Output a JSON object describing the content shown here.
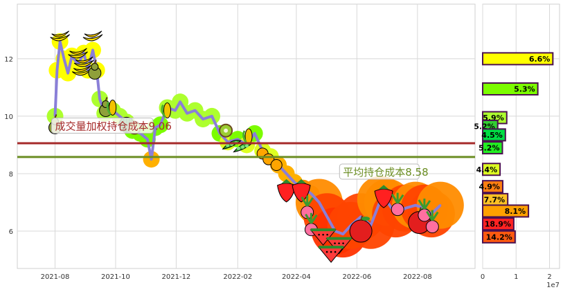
{
  "chart_data": [
    {
      "type": "line",
      "x_ticks": [
        "2021-08",
        "2021-10",
        "2021-12",
        "2022-02",
        "2022-04",
        "2022-06",
        "2022-08"
      ],
      "y_ticks": [
        "6",
        "8",
        "10",
        "12"
      ],
      "ylim": [
        4.7,
        13.9
      ],
      "grid": true,
      "series": [
        {
          "values": [
            {
              "x": "2021-08-01",
              "y": 10.0
            },
            {
              "x": "2021-08-03",
              "y": 11.6
            },
            {
              "x": "2021-08-06",
              "y": 12.6
            },
            {
              "x": "2021-08-10",
              "y": 12.0
            },
            {
              "x": "2021-08-14",
              "y": 11.5
            },
            {
              "x": "2021-08-18",
              "y": 12.1
            },
            {
              "x": "2021-08-24",
              "y": 11.8
            },
            {
              "x": "2021-08-30",
              "y": 12.2
            },
            {
              "x": "2021-09-03",
              "y": 11.6
            },
            {
              "x": "2021-09-08",
              "y": 12.3
            },
            {
              "x": "2021-09-12",
              "y": 11.6
            },
            {
              "x": "2021-09-15",
              "y": 10.6
            },
            {
              "x": "2021-09-20",
              "y": 10.1
            },
            {
              "x": "2021-09-28",
              "y": 10.2
            },
            {
              "x": "2021-10-05",
              "y": 10.0
            },
            {
              "x": "2021-10-12",
              "y": 9.8
            },
            {
              "x": "2021-10-18",
              "y": 9.5
            },
            {
              "x": "2021-10-26",
              "y": 9.4
            },
            {
              "x": "2021-11-02",
              "y": 9.2
            },
            {
              "x": "2021-11-06",
              "y": 8.5
            },
            {
              "x": "2021-11-10",
              "y": 9.6
            },
            {
              "x": "2021-11-15",
              "y": 9.7
            },
            {
              "x": "2021-11-22",
              "y": 10.3
            },
            {
              "x": "2021-11-30",
              "y": 10.2
            },
            {
              "x": "2021-12-05",
              "y": 10.5
            },
            {
              "x": "2021-12-12",
              "y": 10.1
            },
            {
              "x": "2021-12-20",
              "y": 10.2
            },
            {
              "x": "2021-12-28",
              "y": 9.9
            },
            {
              "x": "2022-01-06",
              "y": 10.0
            },
            {
              "x": "2022-01-14",
              "y": 9.4
            },
            {
              "x": "2022-01-22",
              "y": 9.1
            },
            {
              "x": "2022-02-01",
              "y": 9.2
            },
            {
              "x": "2022-02-10",
              "y": 9.0
            },
            {
              "x": "2022-02-18",
              "y": 9.4
            },
            {
              "x": "2022-02-26",
              "y": 8.8
            },
            {
              "x": "2022-03-06",
              "y": 8.6
            },
            {
              "x": "2022-03-14",
              "y": 8.3
            },
            {
              "x": "2022-03-22",
              "y": 8.0
            },
            {
              "x": "2022-03-30",
              "y": 7.7
            },
            {
              "x": "2022-04-08",
              "y": 7.5
            },
            {
              "x": "2022-04-16",
              "y": 7.3
            },
            {
              "x": "2022-04-24",
              "y": 7.0
            },
            {
              "x": "2022-05-02",
              "y": 6.5
            },
            {
              "x": "2022-05-10",
              "y": 6.0
            },
            {
              "x": "2022-05-18",
              "y": 5.9
            },
            {
              "x": "2022-05-26",
              "y": 6.2
            },
            {
              "x": "2022-06-05",
              "y": 6.5
            },
            {
              "x": "2022-06-15",
              "y": 6.2
            },
            {
              "x": "2022-06-25",
              "y": 7.1
            },
            {
              "x": "2022-07-02",
              "y": 7.0
            },
            {
              "x": "2022-07-10",
              "y": 6.6
            },
            {
              "x": "2022-07-20",
              "y": 6.8
            },
            {
              "x": "2022-07-30",
              "y": 6.9
            },
            {
              "x": "2022-08-08",
              "y": 6.8
            },
            {
              "x": "2022-08-15",
              "y": 6.6
            },
            {
              "x": "2022-08-24",
              "y": 6.9
            }
          ]
        }
      ],
      "hlines": [
        {
          "y": 9.06,
          "color": "#a52a2a"
        },
        {
          "y": 8.58,
          "color": "#6b8e23"
        }
      ],
      "annotations": [
        {
          "text": "成交量加权持仓成本9.06",
          "color": "#a52a2a",
          "anchor_x": "2021-08-01",
          "anchor_y": 9.6
        },
        {
          "text": "平均持仓成本8.58",
          "color": "#6b8e23",
          "anchor_x": "2022-05-18",
          "anchor_y": 8.0
        }
      ],
      "fruit_markers": [
        {
          "icon": "banana",
          "x": "2021-08-06",
          "y": 12.7
        },
        {
          "icon": "banana",
          "x": "2021-09-08",
          "y": 12.7
        },
        {
          "icon": "banana",
          "x": "2021-08-24",
          "y": 12.1
        },
        {
          "icon": "banana",
          "x": "2021-08-30",
          "y": 11.8
        },
        {
          "icon": "banana",
          "x": "2021-08-28",
          "y": 11.5
        },
        {
          "icon": "pear",
          "x": "2021-09-10",
          "y": 11.6
        },
        {
          "icon": "pear",
          "x": "2021-09-21",
          "y": 10.3
        },
        {
          "icon": "corn",
          "x": "2021-09-28",
          "y": 10.3
        },
        {
          "icon": "watermelon",
          "x": "2021-10-12",
          "y": 9.7
        },
        {
          "icon": "kiwi",
          "x": "2021-10-20",
          "y": 9.6
        },
        {
          "icon": "corn",
          "x": "2021-11-22",
          "y": 10.2
        },
        {
          "icon": "pear",
          "x": "2021-08-01",
          "y": 9.7
        },
        {
          "icon": "kiwi",
          "x": "2022-01-20",
          "y": 9.5
        },
        {
          "icon": "peapod",
          "x": "2022-01-26",
          "y": 9.0
        },
        {
          "icon": "peapod",
          "x": "2022-02-06",
          "y": 8.9
        },
        {
          "icon": "corn",
          "x": "2022-02-12",
          "y": 9.3
        },
        {
          "icon": "orange",
          "x": "2022-02-26",
          "y": 8.7
        },
        {
          "icon": "orange",
          "x": "2022-03-04",
          "y": 8.5
        },
        {
          "icon": "orange",
          "x": "2022-03-12",
          "y": 8.3
        },
        {
          "icon": "strawberry",
          "x": "2022-03-22",
          "y": 7.4
        },
        {
          "icon": "strawberry",
          "x": "2022-04-06",
          "y": 7.4
        },
        {
          "icon": "radish",
          "x": "2022-04-12",
          "y": 6.8
        },
        {
          "icon": "radish",
          "x": "2022-04-16",
          "y": 6.2
        },
        {
          "icon": "watermelon_slice",
          "x": "2022-04-28",
          "y": 5.9
        },
        {
          "icon": "watermelon_slice",
          "x": "2022-05-14",
          "y": 5.6
        },
        {
          "icon": "watermelon_slice",
          "x": "2022-05-06",
          "y": 5.3
        },
        {
          "icon": "apple",
          "x": "2022-06-05",
          "y": 6.0
        },
        {
          "icon": "strawberry",
          "x": "2022-06-28",
          "y": 7.2
        },
        {
          "icon": "radish",
          "x": "2022-07-12",
          "y": 6.9
        },
        {
          "icon": "apple",
          "x": "2022-08-03",
          "y": 6.3
        },
        {
          "icon": "radish",
          "x": "2022-08-08",
          "y": 6.7
        },
        {
          "icon": "radish",
          "x": "2022-08-16",
          "y": 6.3
        }
      ]
    },
    {
      "type": "bar",
      "orientation": "horizontal",
      "x_ticks": [
        "0",
        "1",
        "2"
      ],
      "x_exponent_label": "1e7",
      "xlim": [
        0,
        23000000.0
      ],
      "ylim": [
        4.7,
        13.9
      ],
      "bars": [
        {
          "y": 12.0,
          "value": 21000000,
          "label": "6.6%",
          "color": "#ffff00"
        },
        {
          "y": 10.95,
          "value": 16500000,
          "label": "5.3%",
          "color": "#7cfc00"
        },
        {
          "y": 9.95,
          "value": 7200000,
          "label": "5.9%",
          "color": "#adff2f"
        },
        {
          "y": 9.65,
          "value": 4500000,
          "label": "5.2%",
          "color": "#32cd32"
        },
        {
          "y": 9.35,
          "value": 6800000,
          "label": "4.5%",
          "color": "#00dd44"
        },
        {
          "y": 8.9,
          "value": 5900000,
          "label": "5.2%",
          "color": "#22ee22"
        },
        {
          "y": 8.15,
          "value": 5200000,
          "label": "4.4%",
          "color": "#ddff22"
        },
        {
          "y": 7.55,
          "value": 6000000,
          "label": "4.9%",
          "color": "#ff7f11"
        },
        {
          "y": 7.1,
          "value": 7500000,
          "label": "7.7%",
          "color": "#ffc125"
        },
        {
          "y": 6.7,
          "value": 13700000,
          "label": "8.1%",
          "color": "#ffa000"
        },
        {
          "y": 6.25,
          "value": 9300000,
          "label": "18.9%",
          "color": "#ff2222"
        },
        {
          "y": 5.8,
          "value": 9700000,
          "label": "14.2%",
          "color": "#ff5a10"
        }
      ]
    }
  ]
}
